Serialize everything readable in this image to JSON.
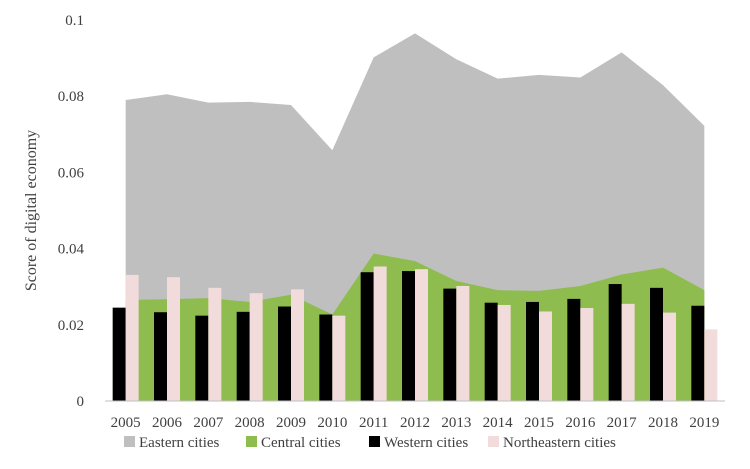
{
  "chart_data": {
    "type": "bar",
    "title": "",
    "xlabel": "",
    "ylabel": "Score of digital economy",
    "ylim": [
      0,
      0.1
    ],
    "yticks": [
      "0",
      "0.02",
      "0.04",
      "0.06",
      "0.08",
      "0.1"
    ],
    "grid": false,
    "legend_position": "bottom",
    "categories": [
      "2005",
      "2006",
      "2007",
      "2008",
      "2009",
      "2010",
      "2011",
      "2012",
      "2013",
      "2014",
      "2015",
      "2016",
      "2017",
      "2018",
      "2019"
    ],
    "series": [
      {
        "name": "Eastern cities",
        "type": "area",
        "color": "#bfbfbf",
        "values": [
          0.079,
          0.0805,
          0.0783,
          0.0785,
          0.0777,
          0.0658,
          0.0902,
          0.0965,
          0.0897,
          0.0846,
          0.0856,
          0.0849,
          0.0915,
          0.0829,
          0.0722
        ]
      },
      {
        "name": "Central cities",
        "type": "area",
        "color": "#8fbc4f",
        "values": [
          0.0265,
          0.0267,
          0.027,
          0.026,
          0.0279,
          0.0227,
          0.0387,
          0.0367,
          0.0315,
          0.0291,
          0.0289,
          0.0302,
          0.0332,
          0.035,
          0.0291
        ]
      },
      {
        "name": "Western cities",
        "type": "bar",
        "color": "#000000",
        "values": [
          0.0245,
          0.0233,
          0.0224,
          0.0234,
          0.0248,
          0.0227,
          0.0338,
          0.0341,
          0.0295,
          0.0258,
          0.026,
          0.0268,
          0.0307,
          0.0297,
          0.025
        ]
      },
      {
        "name": "Northeastern cities",
        "type": "bar",
        "color": "#f2dcdb",
        "values": [
          0.0331,
          0.0325,
          0.0297,
          0.0283,
          0.0293,
          0.0224,
          0.0353,
          0.0346,
          0.0302,
          0.0252,
          0.0235,
          0.0244,
          0.0255,
          0.0232,
          0.0188
        ]
      }
    ]
  }
}
